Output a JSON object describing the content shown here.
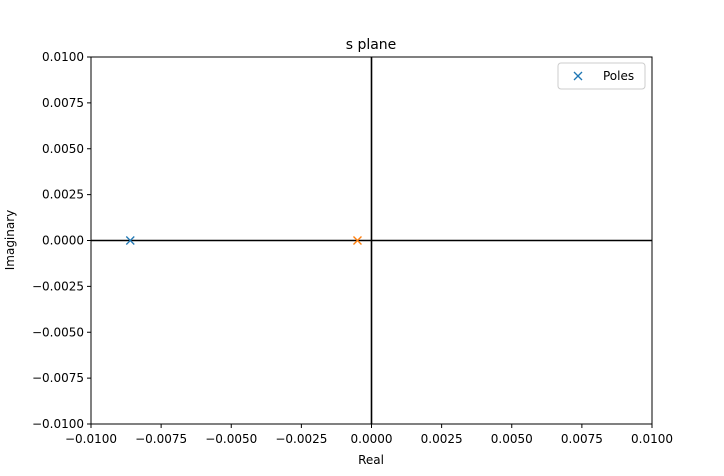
{
  "chart_data": {
    "type": "scatter",
    "title": "s plane",
    "xlabel": "Real",
    "ylabel": "Imaginary",
    "xlim": [
      -0.01,
      0.01
    ],
    "ylim": [
      -0.01,
      0.01
    ],
    "x_ticks": [
      -0.01,
      -0.0075,
      -0.005,
      -0.0025,
      0.0,
      0.0025,
      0.005,
      0.0075,
      0.01
    ],
    "y_ticks": [
      -0.01,
      -0.0075,
      -0.005,
      -0.0025,
      0.0,
      0.0025,
      0.005,
      0.0075,
      0.01
    ],
    "x_tick_labels": [
      "−0.0100",
      "−0.0075",
      "−0.0050",
      "−0.0025",
      "0.0000",
      "0.0025",
      "0.0050",
      "0.0075",
      "0.0100"
    ],
    "y_tick_labels": [
      "−0.0100",
      "−0.0075",
      "−0.0050",
      "−0.0025",
      "0.0000",
      "0.0025",
      "0.0050",
      "0.0075",
      "0.0100"
    ],
    "grid": false,
    "axis_lines_at_zero": true,
    "marker": "x",
    "series": [
      {
        "name": "Poles",
        "color": "#1f77b4",
        "points": [
          {
            "x": -0.0086,
            "y": 0.0
          }
        ]
      },
      {
        "color": "#ff7f0e",
        "points": [
          {
            "x": -0.0005,
            "y": 0.0
          }
        ]
      }
    ],
    "legend": {
      "position": "top-right",
      "entries": [
        "Poles"
      ]
    }
  }
}
